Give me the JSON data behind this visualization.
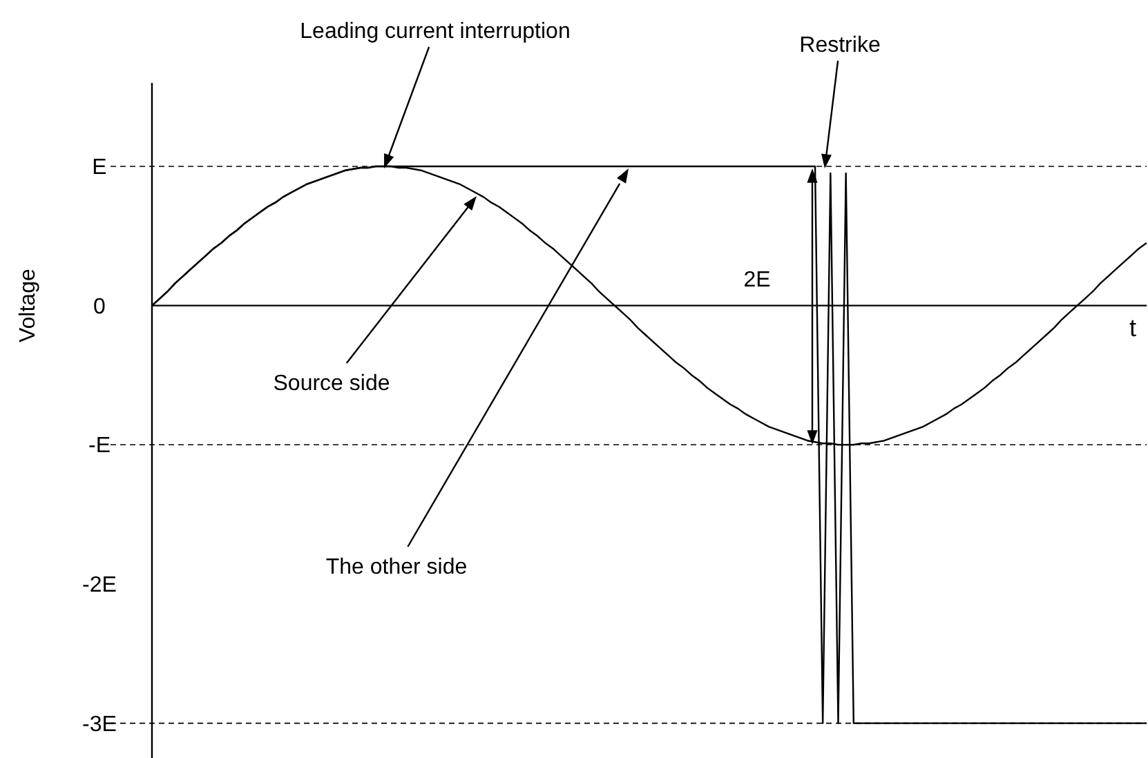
{
  "chart_data": {
    "type": "line",
    "ylabel": "Voltage",
    "xlabel": "t",
    "ylim": [
      -3.25,
      1.6
    ],
    "tick_labels": "y",
    "line_style": "solid",
    "categories": [
      null,
      null,
      null,
      null,
      null,
      null,
      null,
      null,
      null,
      null,
      null,
      null,
      null,
      null,
      null,
      null,
      null,
      null,
      null,
      null,
      null,
      null,
      null,
      null,
      null,
      null,
      null,
      null,
      null,
      null,
      null,
      null,
      null,
      null,
      null,
      null,
      null,
      null,
      null,
      null,
      null,
      null,
      null,
      null,
      null,
      null,
      null,
      null,
      null,
      null,
      null,
      null,
      null,
      null,
      null,
      null,
      null,
      null,
      null,
      null,
      null,
      null,
      null,
      null,
      null,
      null,
      null,
      null,
      null,
      null,
      null,
      null,
      null,
      null,
      null,
      null,
      null,
      null,
      null,
      null,
      null,
      null,
      null,
      null,
      null,
      null,
      null,
      null,
      null,
      null,
      null,
      null,
      null,
      null,
      null,
      null,
      null,
      null,
      null,
      null,
      null,
      null,
      null,
      null,
      null,
      null,
      null,
      null,
      null,
      null,
      null,
      null,
      null,
      null,
      null,
      null,
      null,
      null,
      null,
      null,
      null,
      null,
      null,
      null,
      null,
      null,
      null,
      null,
      null,
      null
    ],
    "yticks": [
      {
        "value": 1,
        "label": "E"
      },
      0,
      {
        "value": -1,
        "label": "-E"
      },
      {
        "value": -2,
        "label": "-2E"
      },
      {
        "value": -3,
        "label": "-3E"
      }
    ],
    "ref_lines": [
      {
        "axis": "y",
        "value": 1,
        "line_style": "dashed"
      },
      {
        "axis": "y",
        "value": -1,
        "line_style": "dashed"
      },
      {
        "axis": "y",
        "value": -3,
        "line_style": "dashed"
      }
    ],
    "series": [
      {
        "color": "#000000",
        "values": [
          0,
          0.05,
          0.1,
          0.16,
          0.21,
          0.26,
          0.31,
          0.36,
          0.41,
          0.45,
          0.5,
          0.54,
          0.59,
          0.63,
          0.67,
          0.71,
          0.74,
          0.78,
          0.81,
          0.84,
          0.87,
          0.89,
          0.91,
          0.93,
          0.95,
          0.97,
          0.98,
          0.99,
          0.99,
          1,
          1,
          1,
          0.99,
          0.99,
          0.98,
          0.97,
          0.95,
          0.93,
          0.91,
          0.89,
          0.87,
          0.84,
          0.81,
          0.78,
          0.74,
          0.71,
          0.67,
          0.63,
          0.59,
          0.54,
          0.5,
          0.45,
          0.41,
          0.36,
          0.31,
          0.26,
          0.21,
          0.16,
          0.1,
          0.05,
          0,
          -0.05,
          -0.1,
          -0.16,
          -0.21,
          -0.26,
          -0.31,
          -0.36,
          -0.41,
          -0.45,
          -0.5,
          -0.54,
          -0.59,
          -0.63,
          -0.67,
          -0.71,
          -0.74,
          -0.78,
          -0.81,
          -0.84,
          -0.87,
          -0.89,
          -0.91,
          -0.93,
          -0.95,
          -0.97,
          -0.98,
          -0.99,
          -0.99,
          -1,
          -1,
          -1,
          -0.99,
          -0.99,
          -0.98,
          -0.97,
          -0.95,
          -0.93,
          -0.91,
          -0.89,
          -0.87,
          -0.84,
          -0.81,
          -0.78,
          -0.74,
          -0.71,
          -0.67,
          -0.63,
          -0.59,
          -0.54,
          -0.5,
          -0.45,
          -0.41,
          -0.36,
          -0.31,
          -0.26,
          -0.21,
          -0.16,
          -0.1,
          -0.05,
          0,
          0.05,
          0.1,
          0.16,
          0.21,
          0.26,
          0.31,
          0.36,
          0.41,
          0.45
        ]
      },
      {
        "color": "#000000",
        "values": [
          0,
          0.05,
          0.1,
          0.16,
          0.21,
          0.26,
          0.31,
          0.36,
          0.41,
          0.45,
          0.5,
          0.54,
          0.59,
          0.63,
          0.67,
          0.71,
          0.74,
          0.78,
          0.81,
          0.84,
          0.87,
          0.89,
          0.91,
          0.93,
          0.95,
          0.97,
          0.98,
          0.99,
          0.99,
          1,
          1,
          1,
          1,
          1,
          1,
          1,
          1,
          1,
          1,
          1,
          1,
          1,
          1,
          1,
          1,
          1,
          1,
          1,
          1,
          1,
          1,
          1,
          1,
          1,
          1,
          1,
          1,
          1,
          1,
          1,
          1,
          1,
          1,
          1,
          1,
          1,
          1,
          1,
          1,
          1,
          1,
          1,
          1,
          1,
          1,
          1,
          1,
          1,
          1,
          1,
          1,
          1,
          1,
          1,
          1,
          1,
          1,
          -3,
          0.95,
          -3,
          0.95,
          -3,
          -3,
          -3,
          -3,
          -3,
          -3,
          -3,
          -3,
          -3,
          -3,
          -3,
          -3,
          -3,
          -3,
          -3,
          -3,
          -3,
          -3,
          -3,
          -3,
          -3,
          -3,
          -3,
          -3,
          -3,
          -3,
          -3,
          -3,
          -3,
          -3,
          -3,
          -3,
          -3,
          -3,
          -3,
          -3,
          -3,
          -3,
          -3
        ]
      }
    ],
    "annotations": [
      "Leading current interruption",
      "Restrike",
      "Source side",
      "The other side",
      "2E"
    ]
  }
}
